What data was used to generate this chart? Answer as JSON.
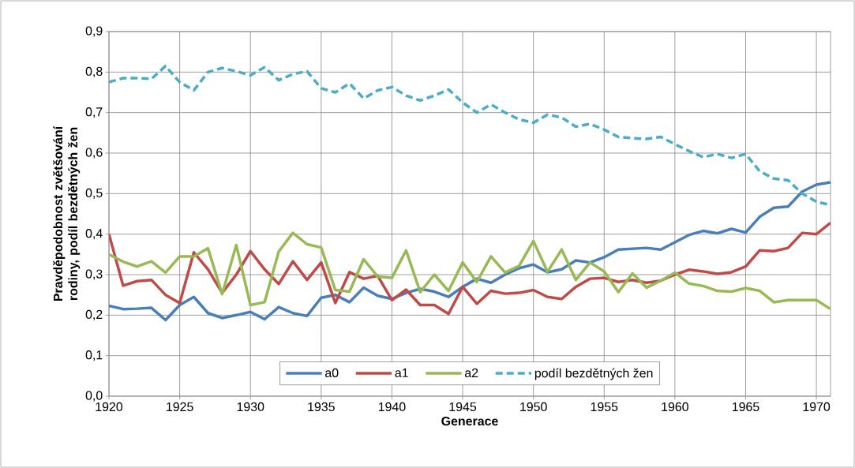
{
  "chart_data": {
    "type": "line",
    "xlabel": "Generace",
    "ylabel": "Pravděpodobnost zvětšování rodiny, podíl bezdětných žen",
    "x": [
      1920,
      1921,
      1922,
      1923,
      1924,
      1925,
      1926,
      1927,
      1928,
      1929,
      1930,
      1931,
      1932,
      1933,
      1934,
      1935,
      1936,
      1937,
      1938,
      1939,
      1940,
      1941,
      1942,
      1943,
      1944,
      1945,
      1946,
      1947,
      1948,
      1949,
      1950,
      1951,
      1952,
      1953,
      1954,
      1955,
      1956,
      1957,
      1958,
      1959,
      1960,
      1961,
      1962,
      1963,
      1964,
      1965,
      1966,
      1967,
      1968,
      1969,
      1970,
      1971
    ],
    "series": [
      {
        "name": "a0",
        "color": "#4a7ebb",
        "line_style": "solid",
        "values": [
          0.223,
          0.215,
          0.216,
          0.218,
          0.188,
          0.225,
          0.245,
          0.205,
          0.193,
          0.2,
          0.208,
          0.19,
          0.22,
          0.205,
          0.198,
          0.243,
          0.25,
          0.232,
          0.268,
          0.248,
          0.24,
          0.255,
          0.265,
          0.258,
          0.245,
          0.27,
          0.29,
          0.28,
          0.3,
          0.316,
          0.325,
          0.306,
          0.313,
          0.335,
          0.33,
          0.343,
          0.362,
          0.364,
          0.366,
          0.362,
          0.38,
          0.398,
          0.408,
          0.402,
          0.413,
          0.404,
          0.443,
          0.465,
          0.468,
          0.505,
          0.522,
          0.528
        ]
      },
      {
        "name": "a1",
        "color": "#be4b48",
        "line_style": "solid",
        "values": [
          0.4,
          0.273,
          0.284,
          0.287,
          0.25,
          0.23,
          0.355,
          0.313,
          0.255,
          0.3,
          0.358,
          0.313,
          0.277,
          0.333,
          0.287,
          0.33,
          0.23,
          0.306,
          0.29,
          0.297,
          0.237,
          0.263,
          0.225,
          0.225,
          0.203,
          0.27,
          0.228,
          0.26,
          0.253,
          0.255,
          0.262,
          0.245,
          0.24,
          0.27,
          0.29,
          0.292,
          0.282,
          0.287,
          0.28,
          0.285,
          0.3,
          0.312,
          0.308,
          0.302,
          0.306,
          0.32,
          0.36,
          0.358,
          0.366,
          0.403,
          0.4,
          0.428
        ]
      },
      {
        "name": "a2",
        "color": "#98b954",
        "line_style": "solid",
        "values": [
          0.35,
          0.332,
          0.32,
          0.333,
          0.305,
          0.345,
          0.345,
          0.365,
          0.252,
          0.373,
          0.225,
          0.232,
          0.357,
          0.403,
          0.375,
          0.367,
          0.262,
          0.258,
          0.338,
          0.295,
          0.292,
          0.36,
          0.257,
          0.3,
          0.26,
          0.33,
          0.282,
          0.345,
          0.305,
          0.322,
          0.383,
          0.307,
          0.362,
          0.287,
          0.33,
          0.308,
          0.257,
          0.303,
          0.268,
          0.285,
          0.305,
          0.278,
          0.272,
          0.26,
          0.258,
          0.267,
          0.26,
          0.232,
          0.237,
          0.237,
          0.237,
          0.215
        ]
      },
      {
        "name": "podíl bezdětných žen",
        "color": "#4bacc6",
        "line_style": "dashed",
        "values": [
          0.775,
          0.785,
          0.785,
          0.783,
          0.815,
          0.775,
          0.755,
          0.8,
          0.81,
          0.802,
          0.792,
          0.812,
          0.78,
          0.795,
          0.802,
          0.76,
          0.75,
          0.772,
          0.735,
          0.755,
          0.763,
          0.742,
          0.73,
          0.742,
          0.757,
          0.725,
          0.7,
          0.72,
          0.7,
          0.683,
          0.675,
          0.695,
          0.688,
          0.665,
          0.672,
          0.658,
          0.64,
          0.637,
          0.635,
          0.64,
          0.622,
          0.605,
          0.59,
          0.598,
          0.588,
          0.598,
          0.555,
          0.537,
          0.533,
          0.5,
          0.48,
          0.472
        ]
      }
    ],
    "xlim": [
      1920,
      1971
    ],
    "xticks": [
      1920,
      1925,
      1930,
      1935,
      1940,
      1945,
      1950,
      1955,
      1960,
      1965,
      1970
    ],
    "ylim": [
      0,
      0.9
    ],
    "yticks": [
      {
        "value": 0,
        "label": "0,0"
      },
      {
        "value": 0.1,
        "label": "0,1"
      },
      {
        "value": 0.2,
        "label": "0,2"
      },
      {
        "value": 0.3,
        "label": "0,3"
      },
      {
        "value": 0.4,
        "label": "0,4"
      },
      {
        "value": 0.5,
        "label": "0,5"
      },
      {
        "value": 0.6,
        "label": "0,6"
      },
      {
        "value": 0.7,
        "label": "0,7"
      },
      {
        "value": 0.8,
        "label": "0,8"
      },
      {
        "value": 0.9,
        "label": "0,9"
      }
    ],
    "grid": true,
    "legend": "bottom"
  }
}
